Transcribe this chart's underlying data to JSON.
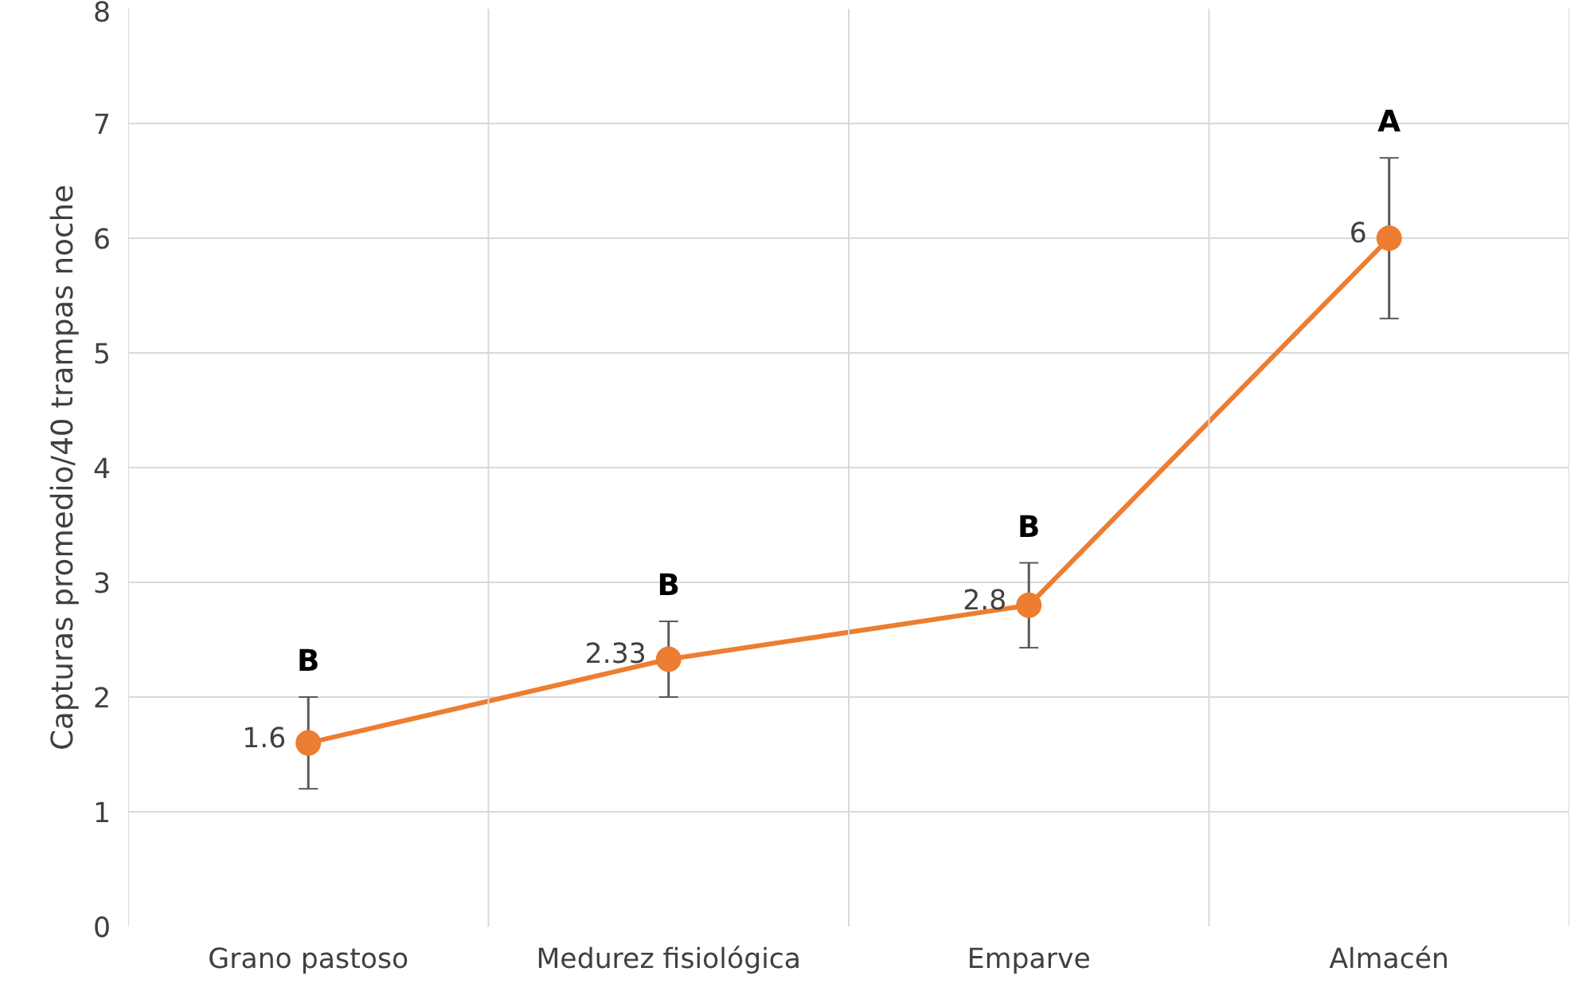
{
  "chart_data": {
    "type": "line",
    "ylabel": "Capturas promedio/40 trampas noche",
    "categories": [
      "Grano pastoso",
      "Medurez fisiológica",
      "Emparve",
      "Almacén"
    ],
    "series": [
      {
        "color": "#ed7d31",
        "values": [
          1.6,
          2.33,
          2.8,
          6
        ],
        "errors": [
          0.4,
          0.33,
          0.37,
          0.7
        ]
      }
    ],
    "ylim": [
      0,
      8
    ],
    "yticks": [
      0,
      1,
      2,
      3,
      4,
      5,
      6,
      7,
      8
    ],
    "grid": true,
    "marker": "circle",
    "line_style": "solid",
    "data_labels": true,
    "annotations": [
      "B",
      "B",
      "B",
      "A"
    ]
  }
}
